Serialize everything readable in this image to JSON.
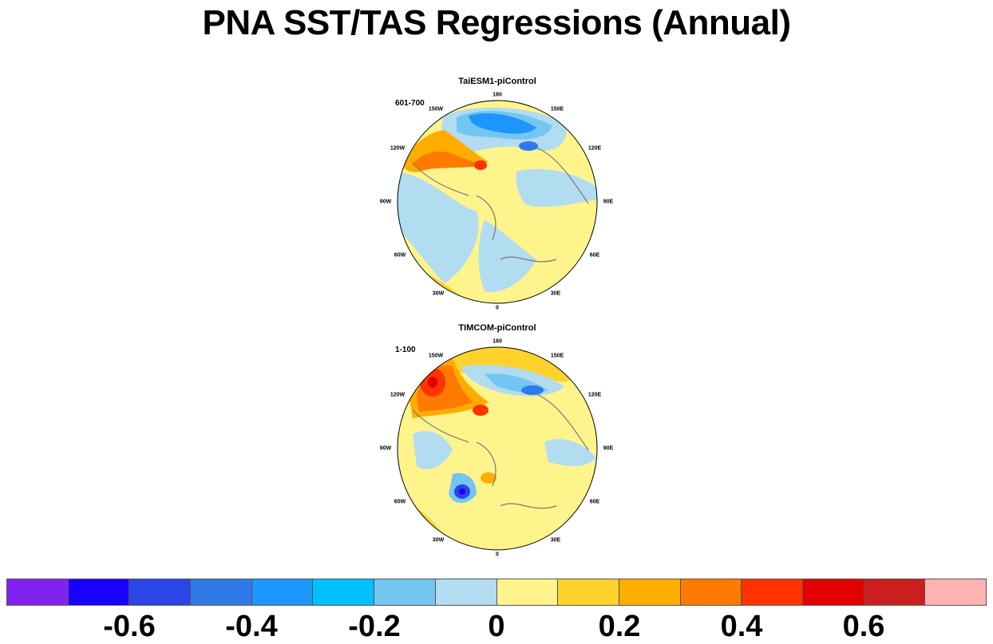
{
  "title": "PNA SST/TAS Regressions (Annual)",
  "panels": [
    {
      "title": "TaiESM1-piControl",
      "years": "601-700"
    },
    {
      "title": "TIMCOM-piControl",
      "years": "1-100"
    }
  ],
  "lon_labels": [
    "180",
    "150E",
    "120E",
    "90E",
    "60E",
    "30E",
    "0",
    "30W",
    "60W",
    "90W",
    "120W",
    "150W"
  ],
  "colorbar": {
    "colors": [
      "#8222f0",
      "#1a00ff",
      "#2b45e6",
      "#3079e8",
      "#1e96ff",
      "#00c0ff",
      "#73c6f2",
      "#b2dcf0",
      "#fff48c",
      "#ffd22c",
      "#ffac00",
      "#ff7a00",
      "#ff3200",
      "#e30000",
      "#cd1e1e",
      "#ffb2b2"
    ],
    "labels": [
      "-0.6",
      "-0.4",
      "-0.2",
      "0",
      "0.2",
      "0.4",
      "0.6"
    ]
  },
  "legend": {
    "land_color": "#888888",
    "background_color": "#fff48c"
  }
}
